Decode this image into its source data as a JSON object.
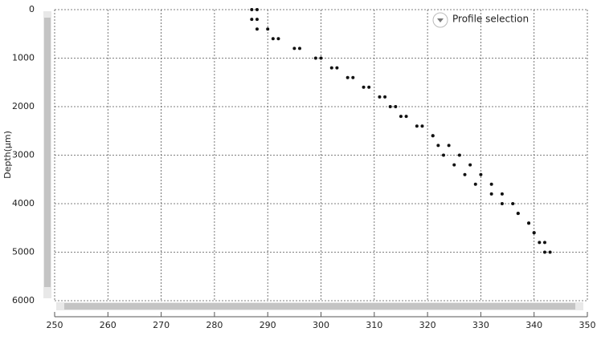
{
  "chart_data": {
    "type": "scatter",
    "ylabel": "Depth(µm)",
    "annotation": "Profile selection",
    "xlim": [
      250,
      350
    ],
    "xticks": [
      250,
      260,
      270,
      280,
      290,
      300,
      310,
      320,
      330,
      340,
      350
    ],
    "ylim": [
      0,
      6000
    ],
    "yticks": [
      0,
      1000,
      2000,
      3000,
      4000,
      5000,
      6000
    ],
    "y_inverted": true,
    "grid": true,
    "series": [
      {
        "color": "#111111",
        "x": [
          288,
          287,
          288,
          291,
          295,
          299,
          302,
          305,
          308,
          311,
          313,
          315,
          318,
          321,
          324,
          326,
          328,
          330,
          332,
          334,
          336,
          337,
          339,
          340,
          342,
          343
        ],
        "values": [
          0,
          200,
          400,
          600,
          800,
          1000,
          1200,
          1400,
          1600,
          1800,
          2000,
          2200,
          2400,
          2600,
          2800,
          3000,
          3200,
          3400,
          3600,
          3800,
          4000,
          4200,
          4400,
          4600,
          4800,
          5000
        ]
      },
      {
        "color": "#111111",
        "x": [
          287,
          288,
          290,
          292,
          296,
          300,
          303,
          306,
          309,
          312,
          314,
          316,
          319,
          321,
          322,
          323,
          325,
          327,
          329,
          332,
          334,
          337,
          339,
          340,
          341,
          342
        ],
        "values": [
          0,
          200,
          400,
          600,
          800,
          1000,
          1200,
          1400,
          1600,
          1800,
          2000,
          2200,
          2400,
          2600,
          2800,
          3000,
          3200,
          3400,
          3600,
          3800,
          4000,
          4200,
          4400,
          4600,
          4800,
          5000
        ]
      }
    ]
  }
}
